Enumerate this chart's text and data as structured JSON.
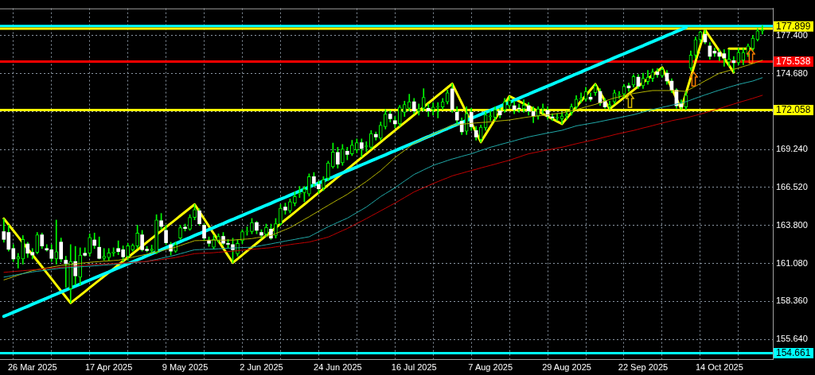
{
  "chart_data": {
    "type": "candlestick",
    "categories": [
      null,
      null,
      null,
      null,
      null,
      null,
      "26 Mar 2025",
      null,
      null,
      null,
      null,
      null,
      null,
      null,
      null,
      null,
      null,
      null,
      null,
      null,
      null,
      null,
      "17 Apr 2025",
      null,
      null,
      null,
      null,
      null,
      null,
      null,
      null,
      null,
      null,
      null,
      null,
      null,
      null,
      null,
      "9 May 2025",
      null,
      null,
      null,
      null,
      null,
      null,
      null,
      null,
      null,
      null,
      null,
      null,
      null,
      null,
      null,
      "2 Jun 2025",
      null,
      null,
      null,
      null,
      null,
      null,
      null,
      null,
      null,
      null,
      null,
      null,
      null,
      null,
      null,
      "24 Jun 2025",
      null,
      null,
      null,
      null,
      null,
      null,
      null,
      null,
      null,
      null,
      null,
      null,
      null,
      null,
      null,
      "16 Jul 2025",
      null,
      null,
      null,
      null,
      null,
      null,
      null,
      null,
      null,
      null,
      null,
      null,
      null,
      null,
      null,
      "7 Aug 2025",
      null,
      null,
      null,
      null,
      null,
      null,
      null,
      null,
      null,
      null,
      null,
      null,
      null,
      null,
      null,
      "29 Aug 2025",
      null,
      null,
      null,
      null,
      null,
      null,
      null,
      null,
      null,
      null,
      null,
      null,
      null,
      null,
      null,
      "22 Sep 2025",
      null,
      null,
      null,
      null,
      null,
      null,
      null,
      null,
      null,
      null,
      null,
      null,
      null,
      null,
      null,
      "14 Oct 2025",
      null,
      null,
      null,
      null,
      null,
      null,
      null,
      null,
      null
    ],
    "ohlc": [
      [
        163.36,
        164.29,
        162.6,
        162.8
      ],
      [
        163.3,
        163.82,
        161.96,
        162.09
      ],
      [
        162.15,
        162.43,
        161.22,
        161.4
      ],
      [
        161.4,
        161.8,
        160.75,
        161.55
      ],
      [
        161.4,
        163.08,
        161.03,
        162.8
      ],
      [
        162.48,
        162.6,
        161.5,
        161.81
      ],
      [
        161.87,
        162.15,
        161.4,
        161.68
      ],
      [
        161.87,
        163.3,
        161.77,
        163.13
      ],
      [
        163.13,
        163.26,
        162.15,
        162.33
      ],
      [
        162.15,
        162.43,
        161.96,
        162.04
      ],
      [
        162.06,
        162.43,
        161.22,
        161.44
      ],
      [
        161.4,
        164.19,
        161.03,
        161.92
      ],
      [
        162.61,
        162.9,
        161.2,
        161.4
      ],
      [
        161.31,
        161.6,
        159.36,
        161.07
      ],
      [
        159.27,
        162.43,
        158.25,
        161.22
      ],
      [
        161.22,
        162.3,
        159.55,
        160.19
      ],
      [
        160.1,
        162.2,
        159.55,
        161.68
      ],
      [
        161.81,
        162.2,
        161.6,
        161.66
      ],
      [
        161.81,
        163.2,
        161.6,
        162.95
      ],
      [
        162.76,
        163.26,
        162.15,
        162.37
      ],
      [
        162.24,
        162.98,
        161.4,
        161.44
      ],
      [
        161.44,
        162.15,
        161.31,
        161.59
      ],
      [
        161.5,
        162.15,
        161.3,
        161.83
      ],
      [
        161.83,
        162.2,
        161.6,
        161.9
      ],
      [
        162.15,
        162.7,
        161.7,
        161.93
      ],
      [
        162.06,
        162.34,
        161.22,
        161.55
      ],
      [
        161.59,
        162.52,
        161.31,
        162.34
      ],
      [
        162.06,
        162.48,
        161.96,
        162.37
      ],
      [
        162.33,
        163.82,
        162.15,
        163.26
      ],
      [
        163.13,
        163.45,
        161.96,
        162.06
      ],
      [
        162.1,
        162.3,
        161.9,
        162.0
      ],
      [
        162.0,
        162.4,
        161.8,
        162.1
      ],
      [
        161.87,
        164.57,
        161.78,
        164.19
      ],
      [
        164.14,
        164.66,
        163.54,
        163.73
      ],
      [
        163.45,
        163.82,
        162.43,
        162.56
      ],
      [
        162.43,
        162.6,
        161.68,
        161.96
      ],
      [
        161.96,
        162.6,
        161.87,
        162.43
      ],
      [
        162.89,
        163.82,
        162.8,
        163.64
      ],
      [
        163.68,
        163.9,
        163.4,
        163.58
      ],
      [
        163.54,
        164.57,
        163.45,
        164.38
      ],
      [
        164.38,
        165.31,
        164.2,
        164.94
      ],
      [
        164.85,
        165.0,
        163.82,
        163.92
      ],
      [
        163.82,
        163.9,
        162.7,
        162.89
      ],
      [
        162.75,
        162.98,
        162.3,
        162.52
      ],
      [
        162.24,
        163.1,
        162.1,
        162.8
      ],
      [
        162.71,
        163.2,
        162.6,
        163.02
      ],
      [
        163.02,
        163.3,
        162.4,
        162.52
      ],
      [
        162.52,
        162.8,
        162.2,
        162.45
      ],
      [
        162.43,
        162.89,
        161.13,
        162.06
      ],
      [
        161.77,
        162.8,
        161.6,
        162.52
      ],
      [
        162.71,
        163.5,
        162.5,
        163.36
      ],
      [
        163.36,
        163.7,
        163.1,
        163.4
      ],
      [
        163.36,
        164.3,
        163.2,
        164.01
      ],
      [
        164.01,
        164.1,
        163.2,
        163.45
      ],
      [
        163.3,
        163.5,
        162.9,
        163.1
      ],
      [
        163.17,
        163.9,
        163.0,
        163.67
      ],
      [
        163.54,
        163.9,
        162.8,
        162.89
      ],
      [
        163.08,
        164.3,
        162.9,
        163.92
      ],
      [
        163.92,
        165.3,
        163.8,
        165.03
      ],
      [
        165.12,
        165.4,
        164.6,
        164.9
      ],
      [
        164.85,
        165.7,
        164.7,
        165.5
      ],
      [
        165.4,
        166.2,
        165.2,
        165.87
      ],
      [
        166.05,
        166.6,
        165.8,
        166.1
      ],
      [
        166.15,
        166.6,
        165.5,
        166.42
      ],
      [
        166.05,
        167.5,
        165.9,
        167.3
      ],
      [
        167.3,
        167.6,
        166.6,
        166.8
      ],
      [
        166.74,
        167.0,
        166.1,
        166.42
      ],
      [
        166.5,
        167.3,
        166.3,
        167.08
      ],
      [
        167.17,
        168.4,
        167.0,
        168.28
      ],
      [
        168.0,
        169.7,
        167.9,
        169.06
      ],
      [
        169.03,
        169.4,
        167.9,
        168.19
      ],
      [
        168.28,
        169.6,
        168.1,
        169.27
      ],
      [
        169.12,
        169.4,
        168.5,
        168.88
      ],
      [
        168.93,
        169.9,
        168.8,
        169.55
      ],
      [
        169.21,
        170.0,
        169.0,
        169.73
      ],
      [
        169.73,
        170.0,
        168.7,
        169.31
      ],
      [
        169.45,
        169.8,
        169.1,
        169.5
      ],
      [
        169.4,
        170.6,
        169.3,
        170.38
      ],
      [
        170.33,
        170.5,
        169.9,
        170.14
      ],
      [
        170.05,
        171.2,
        169.9,
        170.98
      ],
      [
        170.88,
        172.1,
        170.7,
        171.78
      ],
      [
        171.78,
        172.0,
        171.2,
        171.44
      ],
      [
        171.3,
        171.6,
        170.8,
        171.07
      ],
      [
        171.07,
        172.4,
        170.9,
        172.28
      ],
      [
        171.9,
        172.7,
        171.6,
        172.46
      ],
      [
        172.19,
        173.2,
        172.0,
        172.65
      ],
      [
        172.65,
        172.9,
        171.8,
        172.0
      ],
      [
        172.0,
        172.5,
        171.7,
        172.15
      ],
      [
        172.19,
        173.6,
        172.0,
        172.97
      ],
      [
        172.19,
        172.5,
        171.6,
        172.0
      ],
      [
        172.1,
        172.6,
        171.7,
        172.28
      ],
      [
        172.28,
        172.6,
        171.5,
        172.3
      ],
      [
        172.28,
        172.9,
        172.1,
        172.65
      ],
      [
        172.65,
        173.5,
        172.5,
        173.3
      ],
      [
        173.58,
        173.95,
        171.9,
        172.09
      ],
      [
        171.91,
        172.3,
        171.1,
        171.35
      ],
      [
        171.26,
        171.5,
        170.3,
        170.51
      ],
      [
        170.55,
        172.3,
        170.3,
        171.8
      ],
      [
        171.9,
        172.2,
        170.6,
        170.88
      ],
      [
        170.6,
        170.9,
        169.9,
        170.14
      ],
      [
        169.96,
        171.0,
        169.77,
        170.84
      ],
      [
        170.79,
        171.9,
        170.6,
        171.72
      ],
      [
        171.6,
        172.0,
        171.3,
        171.65
      ],
      [
        171.54,
        172.3,
        171.3,
        172.09
      ],
      [
        172.0,
        172.2,
        171.5,
        171.72
      ],
      [
        172.09,
        172.9,
        171.9,
        172.65
      ],
      [
        172.37,
        173.06,
        172.2,
        172.74
      ],
      [
        172.37,
        172.7,
        171.8,
        172.09
      ],
      [
        172.2,
        172.5,
        171.9,
        172.15
      ],
      [
        172.15,
        172.8,
        171.9,
        172.41
      ],
      [
        172.37,
        172.6,
        171.7,
        172.0
      ],
      [
        171.96,
        172.3,
        171.16,
        171.63
      ],
      [
        171.63,
        172.3,
        171.4,
        172.15
      ],
      [
        172.15,
        172.5,
        171.8,
        172.2
      ],
      [
        172.04,
        172.3,
        171.4,
        171.63
      ],
      [
        171.57,
        171.8,
        171.3,
        171.5
      ],
      [
        171.5,
        171.8,
        171.3,
        171.55
      ],
      [
        171.45,
        171.9,
        171.07,
        171.63
      ],
      [
        171.63,
        172.0,
        171.4,
        171.78
      ],
      [
        171.9,
        172.5,
        171.7,
        172.32
      ],
      [
        172.28,
        173.1,
        172.1,
        172.84
      ],
      [
        172.84,
        173.3,
        172.6,
        172.9
      ],
      [
        172.84,
        173.7,
        172.7,
        173.4
      ],
      [
        172.98,
        173.3,
        172.7,
        172.83
      ],
      [
        173.3,
        173.92,
        173.1,
        173.8
      ],
      [
        173.4,
        173.6,
        172.4,
        172.56
      ],
      [
        172.7,
        172.9,
        172.2,
        172.28
      ],
      [
        172.3,
        172.7,
        172.14,
        172.45
      ],
      [
        172.65,
        173.5,
        172.5,
        173.3
      ],
      [
        173.1,
        173.4,
        172.9,
        173.15
      ],
      [
        173.2,
        173.9,
        173.0,
        173.76
      ],
      [
        173.8,
        174.0,
        173.4,
        173.65
      ],
      [
        173.86,
        174.6,
        173.7,
        174.46
      ],
      [
        174.42,
        174.6,
        173.6,
        173.77
      ],
      [
        173.8,
        174.7,
        173.6,
        174.33
      ],
      [
        174.1,
        174.9,
        173.9,
        174.42
      ],
      [
        174.33,
        175.0,
        174.1,
        174.79
      ],
      [
        174.79,
        175.05,
        174.4,
        174.6
      ],
      [
        174.51,
        175.11,
        174.4,
        174.98
      ],
      [
        174.7,
        174.9,
        173.9,
        174.14
      ],
      [
        174.14,
        174.3,
        173.3,
        173.49
      ],
      [
        173.49,
        173.6,
        172.2,
        172.37
      ],
      [
        172.5,
        172.8,
        172.14,
        172.3
      ],
      [
        172.28,
        173.4,
        172.1,
        173.12
      ],
      [
        175.07,
        176.3,
        174.9,
        176.0
      ],
      [
        176.0,
        177.3,
        175.8,
        177.11
      ],
      [
        177.11,
        177.7,
        176.9,
        177.67
      ],
      [
        177.49,
        177.8,
        176.8,
        176.93
      ],
      [
        176.65,
        176.9,
        175.7,
        175.91
      ],
      [
        176.28,
        176.5,
        175.9,
        176.13
      ],
      [
        176.19,
        176.4,
        175.6,
        175.91
      ],
      [
        176.1,
        176.4,
        175.2,
        175.8
      ],
      [
        175.5,
        176.4,
        175.2,
        175.72
      ],
      [
        175.6,
        175.9,
        174.76,
        175.45
      ],
      [
        175.45,
        176.5,
        175.3,
        176.19
      ],
      [
        175.63,
        176.5,
        175.3,
        176.19
      ],
      [
        176.1,
        176.8,
        175.9,
        176.65
      ],
      [
        176.46,
        177.4,
        176.3,
        177.21
      ],
      [
        177.11,
        177.9,
        177.0,
        177.73
      ],
      [
        177.73,
        178.1,
        177.5,
        177.8
      ]
    ],
    "series": [
      {
        "type": "line",
        "color": "#b4b400",
        "values": [
          159.9,
          160.01,
          160.12,
          160.24,
          160.35,
          160.46,
          160.57,
          160.63,
          160.69,
          160.76,
          160.82,
          160.88,
          160.94,
          160.98,
          161.01,
          161.05,
          161.09,
          161.12,
          161.16,
          161.19,
          161.21,
          161.24,
          161.26,
          161.29,
          161.31,
          161.38,
          161.45,
          161.53,
          161.6,
          161.67,
          161.74,
          161.82,
          161.91,
          161.99,
          162.07,
          162.16,
          162.24,
          162.36,
          162.48,
          162.59,
          162.71,
          162.72,
          162.73,
          162.74,
          162.75,
          162.75,
          162.75,
          162.75,
          162.75,
          162.78,
          162.81,
          162.83,
          162.86,
          162.92,
          162.97,
          163.03,
          163.08,
          163.22,
          163.36,
          163.5,
          163.64,
          163.84,
          164.03,
          164.23,
          164.42,
          164.63,
          164.83,
          165.04,
          165.24,
          165.44,
          165.64,
          165.83,
          166.03,
          166.26,
          166.49,
          166.72,
          166.95,
          167.21,
          167.47,
          167.73,
          168.04,
          168.35,
          168.66,
          168.92,
          169.17,
          169.43,
          169.68,
          169.84,
          170.01,
          170.17,
          170.33,
          170.49,
          170.66,
          170.82,
          170.98,
          171.01,
          171.05,
          171.08,
          171.11,
          171.14,
          171.17,
          171.19,
          171.22,
          171.25,
          171.29,
          171.32,
          171.35,
          171.41,
          171.46,
          171.52,
          171.57,
          171.61,
          171.65,
          171.68,
          171.72,
          171.76,
          171.81,
          171.85,
          171.93,
          172.02,
          172.1,
          172.19,
          172.29,
          172.38,
          172.47,
          172.59,
          172.7,
          172.82,
          172.93,
          173.01,
          173.09,
          173.17,
          173.25,
          173.3,
          173.36,
          173.41,
          173.46,
          173.46,
          173.46,
          173.46,
          173.46,
          173.44,
          173.42,
          173.4,
          173.59,
          173.77,
          173.96,
          174.15,
          174.33,
          174.52,
          174.7,
          174.79,
          174.89,
          174.98,
          175.07,
          175.18,
          175.28,
          175.39,
          175.51,
          175.63
        ]
      },
      {
        "type": "line",
        "color": "#20a8a8",
        "values": [
          160.1,
          160.16,
          160.22,
          160.29,
          160.35,
          160.41,
          160.47,
          160.52,
          160.56,
          160.61,
          160.66,
          160.7,
          160.75,
          160.77,
          160.79,
          160.82,
          160.84,
          160.86,
          160.88,
          160.91,
          160.93,
          160.96,
          160.98,
          161.01,
          161.03,
          161.06,
          161.09,
          161.13,
          161.16,
          161.19,
          161.22,
          161.3,
          161.37,
          161.45,
          161.53,
          161.6,
          161.68,
          161.78,
          161.87,
          161.97,
          162.06,
          162.07,
          162.09,
          162.1,
          162.11,
          162.13,
          162.15,
          162.17,
          162.19,
          162.2,
          162.22,
          162.23,
          162.24,
          162.3,
          162.36,
          162.42,
          162.48,
          162.55,
          162.61,
          162.68,
          162.74,
          162.8,
          162.87,
          162.93,
          162.99,
          163.17,
          163.35,
          163.53,
          163.71,
          163.86,
          164.02,
          164.17,
          164.32,
          164.52,
          164.72,
          164.92,
          165.12,
          165.37,
          165.62,
          165.87,
          166.08,
          166.29,
          166.5,
          166.74,
          166.98,
          167.21,
          167.45,
          167.61,
          167.78,
          167.94,
          168.1,
          168.22,
          168.33,
          168.45,
          168.56,
          168.65,
          168.75,
          168.84,
          168.93,
          169.05,
          169.17,
          169.28,
          169.4,
          169.49,
          169.59,
          169.68,
          169.77,
          169.86,
          169.96,
          170.05,
          170.14,
          170.21,
          170.28,
          170.35,
          170.42,
          170.48,
          170.55,
          170.61,
          170.72,
          170.82,
          170.93,
          170.99,
          171.05,
          171.11,
          171.17,
          171.24,
          171.31,
          171.38,
          171.45,
          171.52,
          171.59,
          171.66,
          171.73,
          171.82,
          171.92,
          172.01,
          172.1,
          172.18,
          172.26,
          172.33,
          172.41,
          172.49,
          172.58,
          172.66,
          172.78,
          172.91,
          173.03,
          173.15,
          173.26,
          173.38,
          173.49,
          173.59,
          173.7,
          173.8,
          173.9,
          173.98,
          174.06,
          174.14,
          174.26,
          174.38
        ]
      },
      {
        "type": "line",
        "color": "#c00000",
        "values": [
          160.44,
          160.47,
          160.5,
          160.53,
          160.56,
          160.59,
          160.62,
          160.65,
          160.68,
          160.72,
          160.75,
          160.78,
          160.81,
          160.84,
          160.87,
          160.9,
          160.92,
          160.95,
          160.98,
          161.0,
          161.02,
          161.04,
          161.05,
          161.07,
          161.09,
          161.11,
          161.13,
          161.16,
          161.18,
          161.2,
          161.22,
          161.27,
          161.31,
          161.36,
          161.41,
          161.45,
          161.5,
          161.57,
          161.64,
          161.71,
          161.78,
          161.8,
          161.82,
          161.83,
          161.85,
          161.88,
          161.91,
          161.93,
          161.96,
          161.99,
          162.03,
          162.06,
          162.09,
          162.12,
          162.15,
          162.18,
          162.21,
          162.27,
          162.32,
          162.38,
          162.43,
          162.48,
          162.52,
          162.57,
          162.61,
          162.7,
          162.79,
          162.88,
          162.97,
          163.12,
          163.28,
          163.43,
          163.58,
          163.76,
          163.94,
          164.11,
          164.29,
          164.48,
          164.66,
          164.85,
          165.03,
          165.22,
          165.4,
          165.6,
          165.8,
          166.0,
          166.2,
          166.35,
          166.5,
          166.65,
          166.8,
          166.94,
          167.08,
          167.21,
          167.35,
          167.45,
          167.54,
          167.64,
          167.73,
          167.82,
          167.92,
          168.01,
          168.1,
          168.19,
          168.29,
          168.38,
          168.47,
          168.59,
          168.7,
          168.82,
          168.93,
          169.0,
          169.07,
          169.14,
          169.21,
          169.27,
          169.34,
          169.4,
          169.48,
          169.57,
          169.65,
          169.73,
          169.8,
          169.88,
          169.95,
          170.04,
          170.13,
          170.21,
          170.3,
          170.38,
          170.45,
          170.53,
          170.6,
          170.69,
          170.78,
          170.86,
          170.95,
          171.04,
          171.13,
          171.21,
          171.3,
          171.37,
          171.43,
          171.5,
          171.59,
          171.68,
          171.77,
          171.87,
          171.97,
          172.07,
          172.17,
          172.28,
          172.39,
          172.49,
          172.6,
          172.7,
          172.8,
          172.9,
          173.01,
          173.12
        ]
      },
      {
        "type": "line",
        "color": "#ffff00",
        "values": [
          164.29,
          163.86,
          163.43,
          163.0,
          162.56,
          162.13,
          161.7,
          161.27,
          160.84,
          160.41,
          159.98,
          159.54,
          159.11,
          158.68,
          158.25,
          158.52,
          158.79,
          159.06,
          159.34,
          159.61,
          159.88,
          160.15,
          160.42,
          160.69,
          160.97,
          161.24,
          161.51,
          161.78,
          162.05,
          162.32,
          162.6,
          162.87,
          163.14,
          163.41,
          163.68,
          163.95,
          164.22,
          164.5,
          164.77,
          165.04,
          165.31,
          164.79,
          164.27,
          163.74,
          163.22,
          162.7,
          162.17,
          161.65,
          161.13,
          161.41,
          161.69,
          161.97,
          162.24,
          162.52,
          162.8,
          163.08,
          163.36,
          163.64,
          163.92,
          164.2,
          164.47,
          164.75,
          165.03,
          165.31,
          165.59,
          165.87,
          166.15,
          166.43,
          166.7,
          166.98,
          167.26,
          167.54,
          167.82,
          168.1,
          168.38,
          168.66,
          168.93,
          169.21,
          169.49,
          169.77,
          170.05,
          170.33,
          170.61,
          170.89,
          171.16,
          171.44,
          171.72,
          172.0,
          172.28,
          172.56,
          172.84,
          173.12,
          173.39,
          173.67,
          173.95,
          173.25,
          172.56,
          171.86,
          171.16,
          170.47,
          169.77,
          170.32,
          170.87,
          171.42,
          171.96,
          172.51,
          173.06,
          172.88,
          172.7,
          172.52,
          172.34,
          172.16,
          171.97,
          171.79,
          171.61,
          171.43,
          171.25,
          171.07,
          171.48,
          171.88,
          172.29,
          172.7,
          173.1,
          173.51,
          173.92,
          173.33,
          172.73,
          172.14,
          172.41,
          172.68,
          172.95,
          173.22,
          173.49,
          173.76,
          174.03,
          174.3,
          174.57,
          174.84,
          175.11,
          174.37,
          173.63,
          172.88,
          172.14,
          173.27,
          174.4,
          175.54,
          176.67,
          177.8,
          177.29,
          176.79,
          176.28,
          175.77,
          175.27,
          174.76,
          null,
          null,
          null,
          null,
          null,
          null
        ]
      },
      {
        "type": "line",
        "color": "#00ffff",
        "values": [
          157.29,
          157.43,
          157.58,
          157.72,
          157.87,
          158.01,
          158.16,
          158.3,
          158.45,
          158.59,
          158.74,
          158.88,
          159.03,
          159.17,
          159.32,
          159.46,
          159.6,
          159.75,
          159.89,
          160.04,
          160.18,
          160.33,
          160.47,
          160.62,
          160.76,
          160.91,
          161.05,
          161.2,
          161.34,
          161.48,
          161.63,
          161.77,
          161.92,
          162.06,
          162.21,
          162.35,
          162.5,
          162.64,
          162.79,
          162.93,
          163.08,
          163.22,
          163.37,
          163.51,
          163.65,
          163.8,
          163.94,
          164.09,
          164.23,
          164.38,
          164.52,
          164.67,
          164.81,
          164.96,
          165.1,
          165.25,
          165.39,
          165.54,
          165.68,
          165.82,
          165.97,
          166.11,
          166.26,
          166.4,
          166.55,
          166.69,
          166.84,
          166.98,
          167.13,
          167.27,
          167.42,
          167.56,
          167.7,
          167.85,
          167.99,
          168.14,
          168.28,
          168.43,
          168.57,
          168.72,
          168.86,
          169.01,
          169.15,
          169.3,
          169.44,
          169.59,
          169.73,
          169.87,
          170.02,
          170.16,
          170.31,
          170.45,
          170.6,
          170.74,
          170.89,
          171.03,
          171.18,
          171.32,
          171.47,
          171.61,
          171.76,
          171.9,
          172.04,
          172.19,
          172.33,
          172.48,
          172.62,
          172.77,
          172.91,
          173.06,
          173.2,
          173.35,
          173.49,
          173.64,
          173.78,
          173.92,
          174.07,
          174.21,
          174.36,
          174.5,
          174.65,
          174.79,
          174.94,
          175.08,
          175.23,
          175.37,
          175.52,
          175.66,
          175.81,
          175.95,
          176.09,
          176.24,
          176.38,
          176.53,
          176.67,
          176.82,
          176.96,
          177.11,
          177.25,
          177.4,
          177.54,
          177.69,
          177.83,
          177.98,
          null,
          null,
          null,
          null,
          null,
          null,
          null,
          null,
          null,
          null,
          null,
          null,
          null,
          null,
          null,
          null
        ]
      },
      {
        "type": "line",
        "color": "#ffff00",
        "values": [
          null,
          null,
          null,
          null,
          null,
          null,
          null,
          null,
          null,
          null,
          null,
          null,
          null,
          null,
          null,
          null,
          null,
          null,
          null,
          null,
          null,
          null,
          null,
          null,
          null,
          null,
          null,
          null,
          null,
          null,
          null,
          null,
          null,
          null,
          null,
          null,
          null,
          null,
          null,
          null,
          null,
          null,
          null,
          null,
          null,
          null,
          null,
          null,
          null,
          null,
          null,
          null,
          null,
          null,
          null,
          null,
          null,
          null,
          null,
          null,
          null,
          null,
          null,
          null,
          null,
          null,
          null,
          null,
          null,
          null,
          null,
          null,
          null,
          null,
          null,
          null,
          null,
          null,
          null,
          null,
          null,
          null,
          null,
          null,
          null,
          null,
          null,
          null,
          null,
          null,
          null,
          null,
          null,
          null,
          null,
          null,
          null,
          null,
          null,
          null,
          null,
          null,
          null,
          null,
          null,
          null,
          null,
          null,
          null,
          null,
          null,
          null,
          null,
          null,
          null,
          null,
          null,
          null,
          null,
          null,
          null,
          null,
          null,
          null,
          null,
          null,
          null,
          null,
          null,
          null,
          null,
          null,
          null,
          null,
          null,
          null,
          null,
          null,
          null,
          null,
          null,
          null,
          null,
          null,
          null,
          null,
          null,
          null,
          null,
          null,
          null,
          null,
          176.46,
          176.46,
          176.46,
          176.46,
          176.46,
          176.46,
          null,
          null
        ]
      }
    ],
    "ylim": [
      154.23,
      179.34
    ],
    "yticks": [
      {
        "value": 155.64,
        "label": "155.640"
      },
      {
        "value": 158.36,
        "label": "158.360"
      },
      {
        "value": 161.08,
        "label": "161.080"
      },
      {
        "value": 163.8,
        "label": "163.800"
      },
      {
        "value": 166.52,
        "label": "166.520"
      },
      {
        "value": 169.24,
        "label": "169.240"
      },
      {
        "value": 171.96,
        "label": null
      },
      {
        "value": 174.68,
        "label": "174.680"
      },
      {
        "value": 177.4,
        "label": "177.400"
      }
    ],
    "ref_lines": [
      {
        "axis": "y",
        "value": 178.08,
        "color": "#00ffff"
      },
      {
        "axis": "y",
        "value": 177.899,
        "label": "177.899",
        "color": "#ffff00"
      },
      {
        "axis": "y",
        "value": 175.538,
        "label": "175.538",
        "color": "#ff0000"
      },
      {
        "axis": "y",
        "value": 172.058,
        "label": "172.058",
        "color": "#ffff00"
      },
      {
        "axis": "y",
        "value": 154.661,
        "label": "154.661",
        "color": "#00ffff"
      }
    ],
    "grid": true
  }
}
